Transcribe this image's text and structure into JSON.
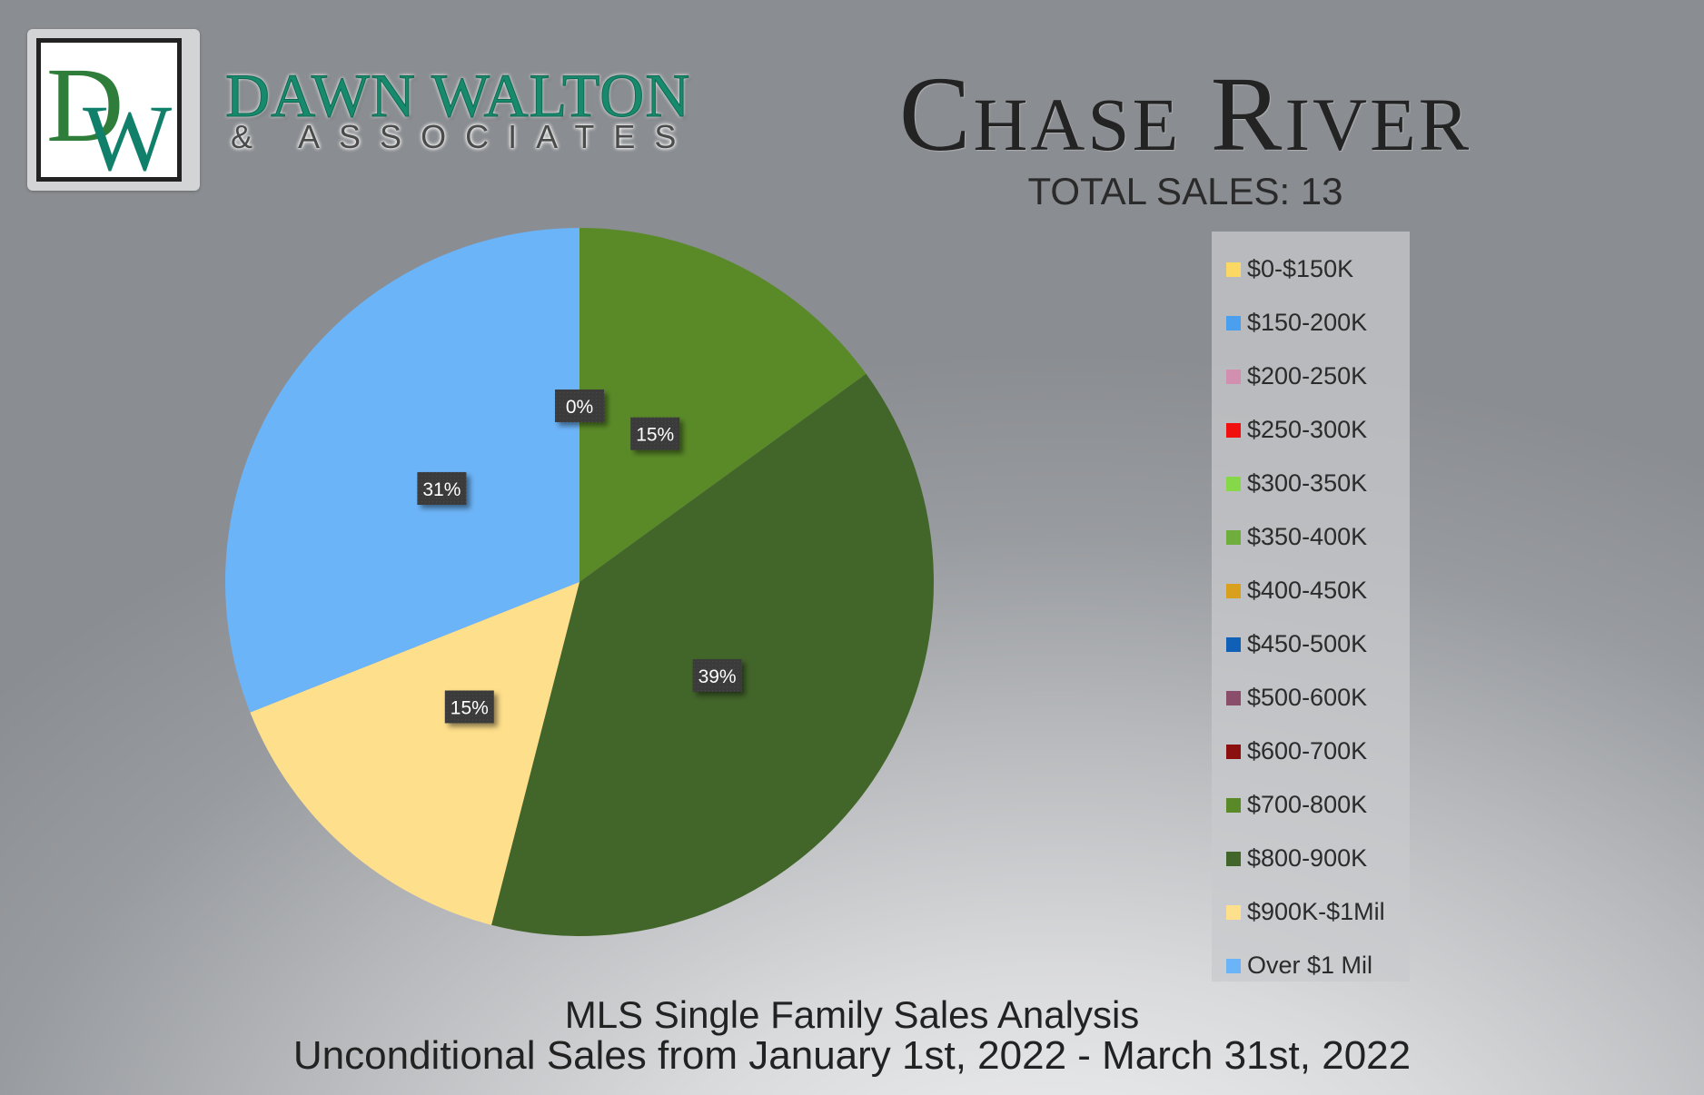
{
  "brand": {
    "logo_letters": "DW",
    "name": "DAWN WALTON",
    "sub": "& ASSOCIATES"
  },
  "header": {
    "title": "Chase River",
    "subtitle": "TOTAL SALES: 13"
  },
  "footer": {
    "line1": "MLS Single Family Sales Analysis",
    "line2": "Unconditional Sales from January 1st, 2022 - March 31st, 2022"
  },
  "chart_data": {
    "type": "pie",
    "title": "Chase River",
    "legend_position": "right",
    "categories": [
      "$0-$150K",
      "$150-200K",
      "$200-250K",
      "$250-300K",
      "$300-350K",
      "$350-400K",
      "$400-450K",
      "$450-500K",
      "$500-600K",
      "$600-700K",
      "$700-800K",
      "$800-900K",
      "$900K-$1Mil",
      "Over $1 Mil"
    ],
    "colors": [
      "#fbd863",
      "#4aa0ef",
      "#d28fb0",
      "#f01010",
      "#86d84a",
      "#6fae3c",
      "#d8a01c",
      "#1160b8",
      "#8a4e6a",
      "#8c0f0f",
      "#5a8a28",
      "#42652a",
      "#fedf8b",
      "#6cb4f8"
    ],
    "values": [
      0,
      0,
      0,
      0,
      0,
      0,
      0,
      0,
      0,
      0,
      15,
      39,
      15,
      31
    ],
    "value_labels": [
      "",
      "",
      "",
      "",
      "",
      "",
      "",
      "",
      "",
      "",
      "15%",
      "39%",
      "15%",
      "31%"
    ],
    "extra_label": "0%",
    "slices": [
      {
        "category": "$700-800K",
        "value": 15,
        "label": "15%",
        "color": "#5a8a28"
      },
      {
        "category": "$800-900K",
        "value": 39,
        "label": "39%",
        "color": "#42652a"
      },
      {
        "category": "$900K-$1Mil",
        "value": 15,
        "label": "15%",
        "color": "#fedf8b"
      },
      {
        "category": "Over $1 Mil",
        "value": 31,
        "label": "31%",
        "color": "#6cb4f8"
      }
    ]
  }
}
